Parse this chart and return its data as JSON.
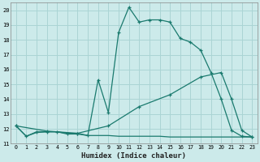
{
  "xlabel": "Humidex (Indice chaleur)",
  "bg_color": "#cceaea",
  "line_color": "#1a7a6e",
  "grid_color": "#aad4d4",
  "xlim": [
    -0.5,
    23.5
  ],
  "ylim": [
    11,
    20.5
  ],
  "yticks": [
    11,
    12,
    13,
    14,
    15,
    16,
    17,
    18,
    19,
    20
  ],
  "xticks": [
    0,
    1,
    2,
    3,
    4,
    5,
    6,
    7,
    8,
    9,
    10,
    11,
    12,
    13,
    14,
    15,
    16,
    17,
    18,
    19,
    20,
    21,
    22,
    23
  ],
  "line1_x": [
    0,
    1,
    2,
    3,
    4,
    5,
    6,
    7,
    8,
    9,
    10,
    11,
    12,
    13,
    14,
    15,
    16,
    17,
    18,
    19,
    20,
    21,
    22,
    23
  ],
  "line1_y": [
    12.2,
    11.5,
    11.8,
    11.8,
    11.8,
    11.7,
    11.7,
    11.55,
    15.3,
    13.1,
    18.5,
    20.2,
    19.2,
    19.35,
    19.35,
    19.2,
    18.1,
    17.85,
    17.3,
    15.8,
    14.0,
    11.9,
    11.5,
    11.45
  ],
  "line2_x": [
    0,
    1,
    2,
    3,
    4,
    5,
    6,
    7,
    8,
    9,
    10,
    11,
    12,
    13,
    14,
    15,
    16,
    17,
    18,
    19,
    20,
    21,
    22,
    23
  ],
  "line2_y": [
    12.2,
    11.5,
    11.75,
    11.8,
    11.8,
    11.65,
    11.65,
    11.55,
    11.55,
    11.55,
    11.5,
    11.5,
    11.5,
    11.5,
    11.5,
    11.45,
    11.45,
    11.45,
    11.45,
    11.45,
    11.45,
    11.45,
    11.45,
    11.45
  ],
  "line3_x": [
    0,
    3,
    6,
    9,
    12,
    15,
    18,
    20,
    21,
    22,
    23
  ],
  "line3_y": [
    12.2,
    11.85,
    11.7,
    12.2,
    13.5,
    14.3,
    15.5,
    15.8,
    14.0,
    11.9,
    11.45
  ]
}
